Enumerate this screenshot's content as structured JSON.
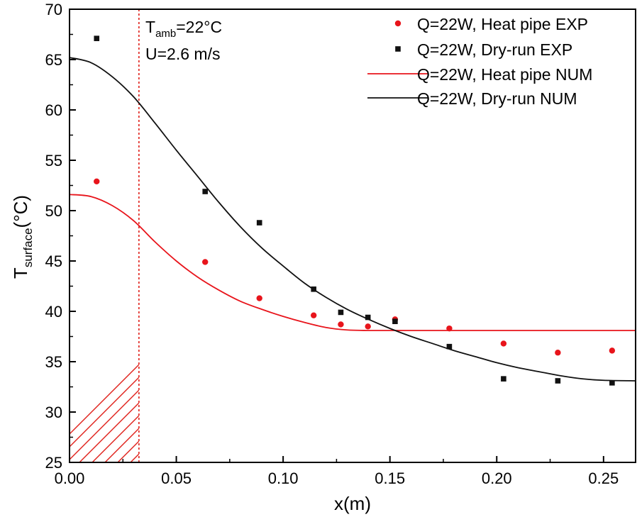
{
  "chart_data": {
    "type": "scatter",
    "title": "",
    "xlabel": "x(m)",
    "ylabel": {
      "main": "T",
      "sub": "surface",
      "unit": "(°C)"
    },
    "xlim": [
      0.0,
      0.265
    ],
    "ylim": [
      25,
      70
    ],
    "xticks": [
      0.0,
      0.05,
      0.1,
      0.15,
      0.2,
      0.25
    ],
    "xtick_labels": [
      "0.00",
      "0.05",
      "0.10",
      "0.15",
      "0.20",
      "0.25"
    ],
    "yticks": [
      25,
      30,
      35,
      40,
      45,
      50,
      55,
      60,
      65,
      70
    ],
    "ytick_labels": [
      "25",
      "30",
      "35",
      "40",
      "45",
      "50",
      "55",
      "60",
      "65",
      "70"
    ],
    "hatched_region": {
      "x_start": 0.0,
      "x_end": 0.0325,
      "color": "#e0201a"
    },
    "annotations": {
      "tamb": {
        "main": "T",
        "sub": "amb",
        "rest": "=22°C"
      },
      "velocity": "U=2.6 m/s"
    },
    "series": [
      {
        "name": "Q=22W, Heat pipe EXP",
        "kind": "scatter",
        "marker": "circle",
        "color": "#e8141b",
        "x": [
          0.0127,
          0.0635,
          0.0889,
          0.1143,
          0.127,
          0.1397,
          0.1524,
          0.1778,
          0.2032,
          0.2286,
          0.254
        ],
        "y": [
          52.9,
          44.9,
          41.3,
          39.6,
          38.7,
          38.5,
          39.2,
          38.3,
          36.8,
          35.9,
          36.1
        ]
      },
      {
        "name": "Q=22W, Dry-run EXP",
        "kind": "scatter",
        "marker": "square",
        "color": "#111111",
        "x": [
          0.0127,
          0.0635,
          0.0889,
          0.1143,
          0.127,
          0.1397,
          0.1524,
          0.1778,
          0.2032,
          0.2286,
          0.254
        ],
        "y": [
          67.1,
          51.9,
          48.8,
          42.2,
          39.9,
          39.4,
          39.0,
          36.5,
          33.3,
          33.1,
          32.9
        ]
      },
      {
        "name": "Q=22W, Heat pipe NUM",
        "kind": "line",
        "color": "#e8141b",
        "x": [
          0.0,
          0.01,
          0.02,
          0.03,
          0.04,
          0.05,
          0.06,
          0.07,
          0.08,
          0.09,
          0.1,
          0.11,
          0.12,
          0.13,
          0.14,
          0.15,
          0.2,
          0.265
        ],
        "y": [
          51.6,
          51.4,
          50.5,
          49.0,
          46.9,
          45.0,
          43.4,
          42.1,
          41.0,
          40.2,
          39.5,
          38.9,
          38.4,
          38.15,
          38.1,
          38.1,
          38.1,
          38.1
        ]
      },
      {
        "name": "Q=22W, Dry-run NUM",
        "kind": "line",
        "color": "#111111",
        "x": [
          0.0,
          0.01,
          0.02,
          0.03,
          0.04,
          0.05,
          0.06,
          0.07,
          0.08,
          0.09,
          0.1,
          0.11,
          0.12,
          0.13,
          0.14,
          0.15,
          0.16,
          0.17,
          0.18,
          0.19,
          0.2,
          0.21,
          0.22,
          0.23,
          0.24,
          0.25,
          0.265
        ],
        "y": [
          65.2,
          64.7,
          63.3,
          61.3,
          58.7,
          56.0,
          53.4,
          50.8,
          48.4,
          46.3,
          44.5,
          42.8,
          41.4,
          40.2,
          39.2,
          38.3,
          37.5,
          36.8,
          36.1,
          35.5,
          34.9,
          34.4,
          34.0,
          33.6,
          33.3,
          33.15,
          33.1
        ]
      }
    ],
    "legend_position": "top-right"
  }
}
